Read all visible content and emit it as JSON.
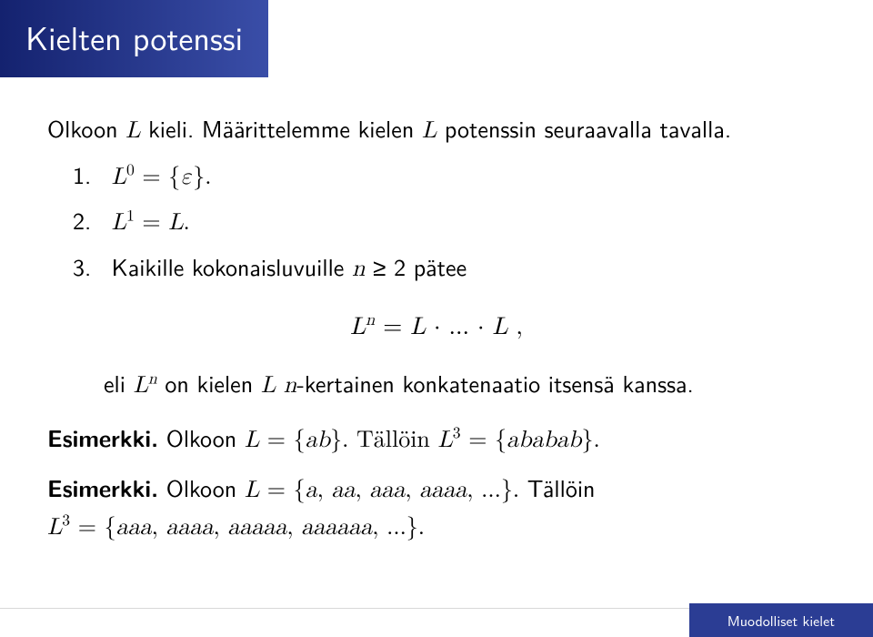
{
  "title": "Kielten potenssi",
  "intro_a": "Olkoon ",
  "intro_b": " kieli. Määrittelemme kielen ",
  "intro_c": " potenssin seuraavalla tavalla.",
  "item1_num": "1.",
  "item1_eq": "L⁰ = {ε}.",
  "item2_num": "2.",
  "item2_eq": "L¹ = L.",
  "item3_num": "3.",
  "item3_a": "Kaikille kokonaisluvuille ",
  "item3_b": " ≥ 2 pätee",
  "display_eq": "Lⁿ = L · ... · L ,",
  "sub_a": "eli ",
  "sub_b": " on kielen ",
  "sub_c": " ",
  "sub_d": "-kertainen konkatenaatio itsensä kanssa.",
  "es_label": "Esimerkki.",
  "es1_a": " Olkoon ",
  "es1_b": " = {",
  "es1_c": "}. Tällöin ",
  "es1_d": " = {",
  "es1_e": "}.",
  "es1_ab": "ab",
  "es1_ababab": "ababab",
  "es2_a": " Olkoon ",
  "es2_set": " = {a, aa, aaa, aaaa, ...}. Tällöin",
  "es2_b": " = {aaa, aaaa, aaaaa, aaaaaa, ...}.",
  "footer": "Muodolliset kielet"
}
